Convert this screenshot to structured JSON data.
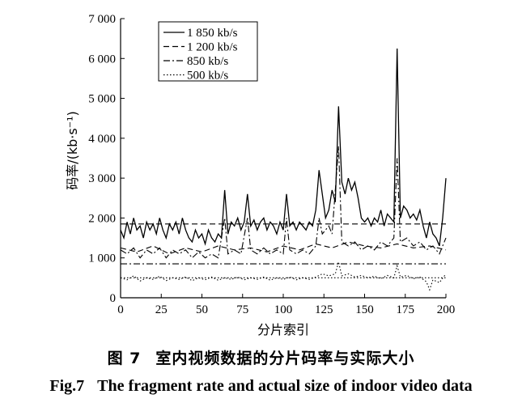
{
  "chart_data": {
    "type": "line",
    "xlabel": "分片索引",
    "ylabel": "码率/(kb·s⁻¹)",
    "xlim": [
      0,
      200
    ],
    "ylim": [
      0,
      7000
    ],
    "x_ticks": [
      "0",
      "25",
      "50",
      "75",
      "100",
      "125",
      "150",
      "175",
      "200"
    ],
    "y_ticks": [
      "0",
      "1 000",
      "2 000",
      "3 000",
      "4 000",
      "5 000",
      "6 000",
      "7 000"
    ],
    "legend_position": "top-left",
    "series": [
      {
        "name": "1 850 kb/s",
        "line_style": "solid",
        "nominal": 1850,
        "points": [
          [
            0,
            1700
          ],
          [
            2,
            1500
          ],
          [
            4,
            1900
          ],
          [
            6,
            1600
          ],
          [
            8,
            2000
          ],
          [
            10,
            1700
          ],
          [
            12,
            1800
          ],
          [
            14,
            1500
          ],
          [
            16,
            1900
          ],
          [
            18,
            1700
          ],
          [
            20,
            1850
          ],
          [
            22,
            1600
          ],
          [
            24,
            2000
          ],
          [
            26,
            1700
          ],
          [
            28,
            1500
          ],
          [
            30,
            1850
          ],
          [
            32,
            1700
          ],
          [
            34,
            1900
          ],
          [
            36,
            1600
          ],
          [
            38,
            2000
          ],
          [
            40,
            1700
          ],
          [
            42,
            1500
          ],
          [
            44,
            1400
          ],
          [
            46,
            1700
          ],
          [
            48,
            1500
          ],
          [
            50,
            1600
          ],
          [
            52,
            1350
          ],
          [
            54,
            1700
          ],
          [
            56,
            1500
          ],
          [
            58,
            1400
          ],
          [
            60,
            1600
          ],
          [
            62,
            1500
          ],
          [
            64,
            2700
          ],
          [
            66,
            1600
          ],
          [
            68,
            1900
          ],
          [
            70,
            1800
          ],
          [
            72,
            2000
          ],
          [
            74,
            1700
          ],
          [
            76,
            1900
          ],
          [
            78,
            2600
          ],
          [
            80,
            1800
          ],
          [
            82,
            1950
          ],
          [
            84,
            1700
          ],
          [
            86,
            1900
          ],
          [
            88,
            2000
          ],
          [
            90,
            1700
          ],
          [
            92,
            1900
          ],
          [
            94,
            1800
          ],
          [
            96,
            1600
          ],
          [
            98,
            1900
          ],
          [
            100,
            1700
          ],
          [
            102,
            2600
          ],
          [
            104,
            1800
          ],
          [
            106,
            1900
          ],
          [
            108,
            1700
          ],
          [
            110,
            1900
          ],
          [
            112,
            1800
          ],
          [
            114,
            1700
          ],
          [
            116,
            1900
          ],
          [
            118,
            1800
          ],
          [
            120,
            2200
          ],
          [
            122,
            3200
          ],
          [
            124,
            2600
          ],
          [
            126,
            2000
          ],
          [
            128,
            2200
          ],
          [
            130,
            2700
          ],
          [
            132,
            2400
          ],
          [
            134,
            4800
          ],
          [
            136,
            2900
          ],
          [
            138,
            2600
          ],
          [
            140,
            3000
          ],
          [
            142,
            2700
          ],
          [
            144,
            2900
          ],
          [
            146,
            2500
          ],
          [
            148,
            2000
          ],
          [
            150,
            1900
          ],
          [
            152,
            2000
          ],
          [
            154,
            1800
          ],
          [
            156,
            2000
          ],
          [
            158,
            1900
          ],
          [
            160,
            2200
          ],
          [
            162,
            1800
          ],
          [
            164,
            2100
          ],
          [
            166,
            2000
          ],
          [
            168,
            1900
          ],
          [
            170,
            6250
          ],
          [
            172,
            2000
          ],
          [
            174,
            2300
          ],
          [
            176,
            2200
          ],
          [
            178,
            2000
          ],
          [
            180,
            2100
          ],
          [
            182,
            1950
          ],
          [
            184,
            2200
          ],
          [
            186,
            1800
          ],
          [
            188,
            1500
          ],
          [
            190,
            1900
          ],
          [
            192,
            1600
          ],
          [
            194,
            1500
          ],
          [
            196,
            1300
          ],
          [
            198,
            2000
          ],
          [
            200,
            3000
          ]
        ]
      },
      {
        "name": "1 200 kb/s",
        "line_style": "dashed",
        "nominal": 1200,
        "constant": 1850,
        "points": [
          [
            0,
            1850
          ],
          [
            200,
            1850
          ]
        ]
      },
      {
        "name": "850 kb/s",
        "line_style": "dash-dot",
        "nominal": 850,
        "points": [
          [
            0,
            1200
          ],
          [
            4,
            1100
          ],
          [
            8,
            1250
          ],
          [
            12,
            1000
          ],
          [
            16,
            1200
          ],
          [
            20,
            1100
          ],
          [
            24,
            1250
          ],
          [
            28,
            1000
          ],
          [
            32,
            1200
          ],
          [
            36,
            1100
          ],
          [
            40,
            1200
          ],
          [
            44,
            1000
          ],
          [
            48,
            1150
          ],
          [
            52,
            1000
          ],
          [
            56,
            1100
          ],
          [
            60,
            1000
          ],
          [
            64,
            2000
          ],
          [
            66,
            1100
          ],
          [
            70,
            1200
          ],
          [
            74,
            1100
          ],
          [
            78,
            2000
          ],
          [
            80,
            1200
          ],
          [
            84,
            1100
          ],
          [
            88,
            1250
          ],
          [
            92,
            1100
          ],
          [
            96,
            1200
          ],
          [
            100,
            1100
          ],
          [
            102,
            2000
          ],
          [
            104,
            1200
          ],
          [
            108,
            1100
          ],
          [
            112,
            1200
          ],
          [
            116,
            1100
          ],
          [
            120,
            1300
          ],
          [
            122,
            2000
          ],
          [
            124,
            1600
          ],
          [
            128,
            1800
          ],
          [
            130,
            1600
          ],
          [
            134,
            3800
          ],
          [
            136,
            1400
          ],
          [
            140,
            1300
          ],
          [
            144,
            1400
          ],
          [
            148,
            1200
          ],
          [
            152,
            1300
          ],
          [
            156,
            1200
          ],
          [
            160,
            1400
          ],
          [
            164,
            1300
          ],
          [
            168,
            1500
          ],
          [
            170,
            3500
          ],
          [
            172,
            1400
          ],
          [
            176,
            1500
          ],
          [
            180,
            1300
          ],
          [
            184,
            1400
          ],
          [
            188,
            1200
          ],
          [
            192,
            1300
          ],
          [
            196,
            1100
          ],
          [
            200,
            1500
          ]
        ]
      },
      {
        "name": "500 kb/s",
        "line_style": "dotted",
        "nominal": 500,
        "points": [
          [
            0,
            500
          ],
          [
            4,
            450
          ],
          [
            8,
            550
          ],
          [
            12,
            420
          ],
          [
            16,
            500
          ],
          [
            20,
            460
          ],
          [
            24,
            540
          ],
          [
            28,
            430
          ],
          [
            32,
            500
          ],
          [
            36,
            460
          ],
          [
            40,
            520
          ],
          [
            44,
            430
          ],
          [
            48,
            500
          ],
          [
            52,
            450
          ],
          [
            56,
            520
          ],
          [
            60,
            440
          ],
          [
            64,
            500
          ],
          [
            68,
            460
          ],
          [
            72,
            520
          ],
          [
            76,
            450
          ],
          [
            80,
            500
          ],
          [
            84,
            460
          ],
          [
            88,
            520
          ],
          [
            92,
            440
          ],
          [
            96,
            500
          ],
          [
            100,
            460
          ],
          [
            104,
            520
          ],
          [
            108,
            450
          ],
          [
            112,
            500
          ],
          [
            116,
            460
          ],
          [
            120,
            520
          ],
          [
            124,
            600
          ],
          [
            128,
            550
          ],
          [
            132,
            600
          ],
          [
            134,
            900
          ],
          [
            136,
            550
          ],
          [
            140,
            600
          ],
          [
            144,
            520
          ],
          [
            148,
            560
          ],
          [
            152,
            500
          ],
          [
            156,
            540
          ],
          [
            160,
            480
          ],
          [
            164,
            560
          ],
          [
            168,
            500
          ],
          [
            170,
            800
          ],
          [
            172,
            520
          ],
          [
            176,
            560
          ],
          [
            180,
            480
          ],
          [
            184,
            520
          ],
          [
            188,
            400
          ],
          [
            190,
            200
          ],
          [
            192,
            450
          ],
          [
            196,
            380
          ],
          [
            200,
            600
          ]
        ]
      }
    ],
    "extra_series": [
      {
        "line_style": "dashed",
        "points": [
          [
            0,
            1250
          ],
          [
            10,
            1150
          ],
          [
            20,
            1300
          ],
          [
            30,
            1100
          ],
          [
            40,
            1250
          ],
          [
            50,
            1150
          ],
          [
            60,
            1300
          ],
          [
            70,
            1200
          ],
          [
            80,
            1250
          ],
          [
            90,
            1150
          ],
          [
            100,
            1300
          ],
          [
            110,
            1200
          ],
          [
            120,
            1350
          ],
          [
            130,
            1250
          ],
          [
            140,
            1400
          ],
          [
            150,
            1300
          ],
          [
            160,
            1250
          ],
          [
            170,
            1350
          ],
          [
            180,
            1250
          ],
          [
            190,
            1300
          ],
          [
            200,
            1200
          ]
        ]
      },
      {
        "line_style": "dash-dot",
        "points": [
          [
            0,
            850
          ],
          [
            200,
            850
          ]
        ]
      },
      {
        "line_style": "dotted",
        "points": [
          [
            0,
            500
          ],
          [
            200,
            500
          ]
        ]
      }
    ]
  },
  "caption": {
    "cn_num": "图 7",
    "cn_text": "室内视频数据的分片码率与实际大小",
    "en_num": "Fig.7",
    "en_text": "The fragment rate and actual size of indoor video data"
  }
}
